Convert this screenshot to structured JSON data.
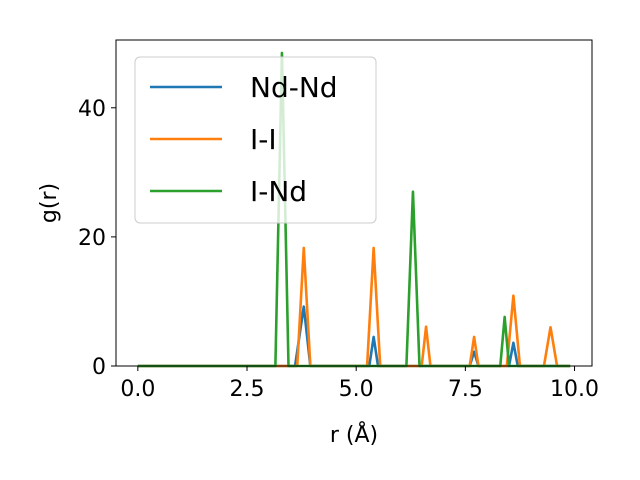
{
  "chart_data": {
    "type": "line",
    "xlabel": "r (Å)",
    "ylabel": "g(r)",
    "xlim": [
      -0.5,
      10.4
    ],
    "ylim": [
      0,
      50.5
    ],
    "xticks": [
      0.0,
      2.5,
      5.0,
      7.5,
      10.0
    ],
    "xtick_labels": [
      "0.0",
      "2.5",
      "5.0",
      "7.5",
      "10.0"
    ],
    "yticks": [
      0,
      20,
      40
    ],
    "ytick_labels": [
      "0",
      "20",
      "40"
    ],
    "grid": false,
    "legend_position": "upper-left",
    "series": [
      {
        "name": "Nd-Nd",
        "color": "#1f77b4",
        "points": [
          [
            0.0,
            0
          ],
          [
            3.6,
            0
          ],
          [
            3.8,
            9.2
          ],
          [
            3.95,
            0
          ],
          [
            5.3,
            0
          ],
          [
            5.4,
            4.5
          ],
          [
            5.5,
            0
          ],
          [
            7.6,
            0
          ],
          [
            7.7,
            2.2
          ],
          [
            7.8,
            0
          ],
          [
            8.5,
            0
          ],
          [
            8.6,
            3.6
          ],
          [
            8.7,
            0
          ],
          [
            9.9,
            0
          ]
        ]
      },
      {
        "name": "I-I",
        "color": "#ff7f0e",
        "points": [
          [
            0.0,
            0
          ],
          [
            3.65,
            0
          ],
          [
            3.8,
            18.3
          ],
          [
            3.95,
            0
          ],
          [
            5.25,
            0
          ],
          [
            5.4,
            18.3
          ],
          [
            5.55,
            0
          ],
          [
            6.5,
            0
          ],
          [
            6.6,
            6.1
          ],
          [
            6.7,
            0
          ],
          [
            7.6,
            0
          ],
          [
            7.7,
            4.5
          ],
          [
            7.8,
            0
          ],
          [
            8.45,
            0
          ],
          [
            8.6,
            10.9
          ],
          [
            8.75,
            0
          ],
          [
            9.3,
            0
          ],
          [
            9.45,
            6.0
          ],
          [
            9.6,
            0
          ],
          [
            9.9,
            0
          ]
        ]
      },
      {
        "name": "I-Nd",
        "color": "#2ca02c",
        "points": [
          [
            0.0,
            0
          ],
          [
            3.15,
            0
          ],
          [
            3.3,
            48.5
          ],
          [
            3.45,
            0
          ],
          [
            6.15,
            0
          ],
          [
            6.3,
            27.0
          ],
          [
            6.45,
            0
          ],
          [
            8.3,
            0
          ],
          [
            8.4,
            7.6
          ],
          [
            8.5,
            0
          ],
          [
            9.9,
            0
          ]
        ]
      }
    ]
  }
}
